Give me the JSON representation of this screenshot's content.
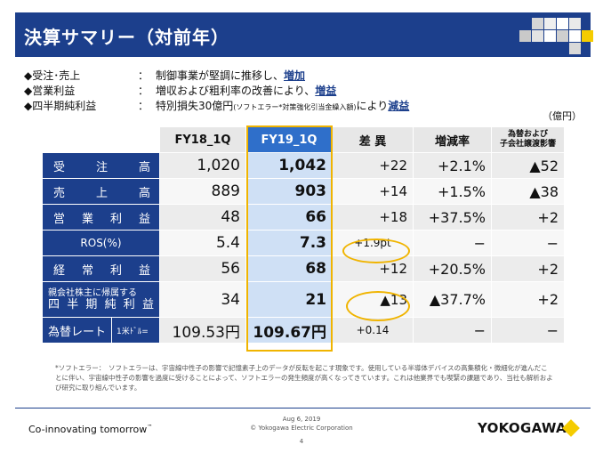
{
  "title": "決算サマリー（対前年）",
  "colors": {
    "title_bar": "#1c3f8c",
    "header_fy19": "#2f6fca",
    "fy19_column": "#cfe0f5",
    "highlight": "#f0b400",
    "logo_diamond": "#f5cc00"
  },
  "bullets": [
    {
      "label": "◆受注･売上",
      "colon": "：",
      "pre": "制御事業が堅調に推移し、",
      "small": "",
      "post": "",
      "emphasis": "増加"
    },
    {
      "label": "◆営業利益",
      "colon": "：",
      "pre": "増収および粗利率の改善により、",
      "small": "",
      "post": "",
      "emphasis": "増益"
    },
    {
      "label": "◆四半期純利益",
      "colon": "：",
      "pre": "特別損失30億円",
      "small": "(ソフトエラー*対策強化引当金繰入額)",
      "post": "により",
      "emphasis": "減益"
    }
  ],
  "unit": "（億円）",
  "table": {
    "headers": [
      "FY18_1Q",
      "FY19_1Q",
      "差 異",
      "増減率",
      "為替および\n子会社譲渡影響"
    ],
    "header_small_line1": "為替および",
    "header_small_line2": "子会社譲渡影響",
    "rows": [
      {
        "label_chars": [
          "受",
          "注",
          "高"
        ],
        "fy18": "1,020",
        "fy19": "1,042",
        "diff": "+22",
        "rate": "+2.1%",
        "fx": "▲52"
      },
      {
        "label_chars": [
          "売",
          "上",
          "高"
        ],
        "fy18": "889",
        "fy19": "903",
        "diff": "+14",
        "rate": "+1.5%",
        "fx": "▲38"
      },
      {
        "label_chars": [
          "営",
          "業",
          "利",
          "益"
        ],
        "fy18": "48",
        "fy19": "66",
        "diff": "+18",
        "rate": "+37.5%",
        "fx": "+2"
      },
      {
        "label_center": "ROS(%)",
        "fy18": "5.4",
        "fy19": "7.3",
        "diff": "+1.9pt",
        "rate": "−",
        "fx": "−"
      },
      {
        "label_chars": [
          "経",
          "常",
          "利",
          "益"
        ],
        "fy18": "56",
        "fy19": "68",
        "diff": "+12",
        "rate": "+20.5%",
        "fx": "+2"
      },
      {
        "label_line1": "親会社株主に帰属する",
        "label_chars": [
          "四",
          "半",
          "期",
          "純",
          "利",
          "益"
        ],
        "fy18": "34",
        "fy19": "21",
        "diff": "▲13",
        "rate": "▲37.7%",
        "fx": "+2"
      },
      {
        "label_main": "為替レート",
        "label_sub": "1米ﾄﾞﾙ=",
        "fy18": "109.53円",
        "fy19": "109.67円",
        "diff": "+0.14",
        "rate": "−",
        "fx": "−"
      }
    ]
  },
  "note": "*ソフトエラー：　ソフトエラーは、宇宙線中性子の影響で記憶素子上のデータが反転を起こす現象です。使用している半導体デバイスの高集積化・微細化が進んだことに伴い、宇宙線中性子の影響を過度に受けることによって、ソフトエラーの発生頻度が高くなってきています。これは他業界でも喫緊の課題であり、当社も解析および研究に取り組んでいます。",
  "footer": {
    "tagline": "Co-innovating tomorrow",
    "tm": "™",
    "date": "Aug 6, 2019",
    "copyright": "© Yokogawa Electric Corporation",
    "page": "4",
    "logo": "YOKOGAWA"
  }
}
